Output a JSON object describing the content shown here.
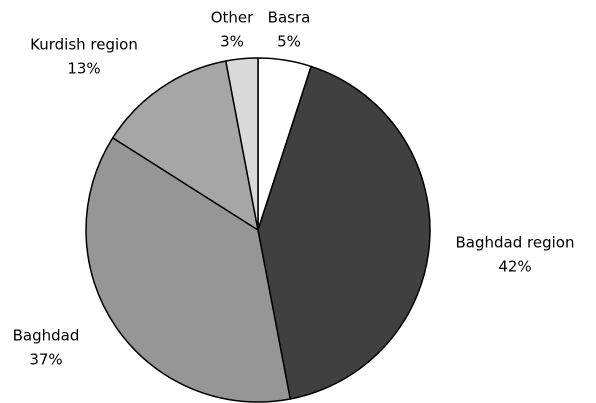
{
  "chart_data": {
    "type": "pie",
    "categories": [
      "Basra",
      "Baghdad region",
      "Baghdad",
      "Kurdish region",
      "Other"
    ],
    "values": [
      5,
      42,
      37,
      13,
      3
    ],
    "value_labels": [
      "5%",
      "42%",
      "37%",
      "13%",
      "3%"
    ],
    "colors": [
      "#ffffff",
      "#404040",
      "#969696",
      "#a6a6a6",
      "#d9d9d9"
    ]
  }
}
